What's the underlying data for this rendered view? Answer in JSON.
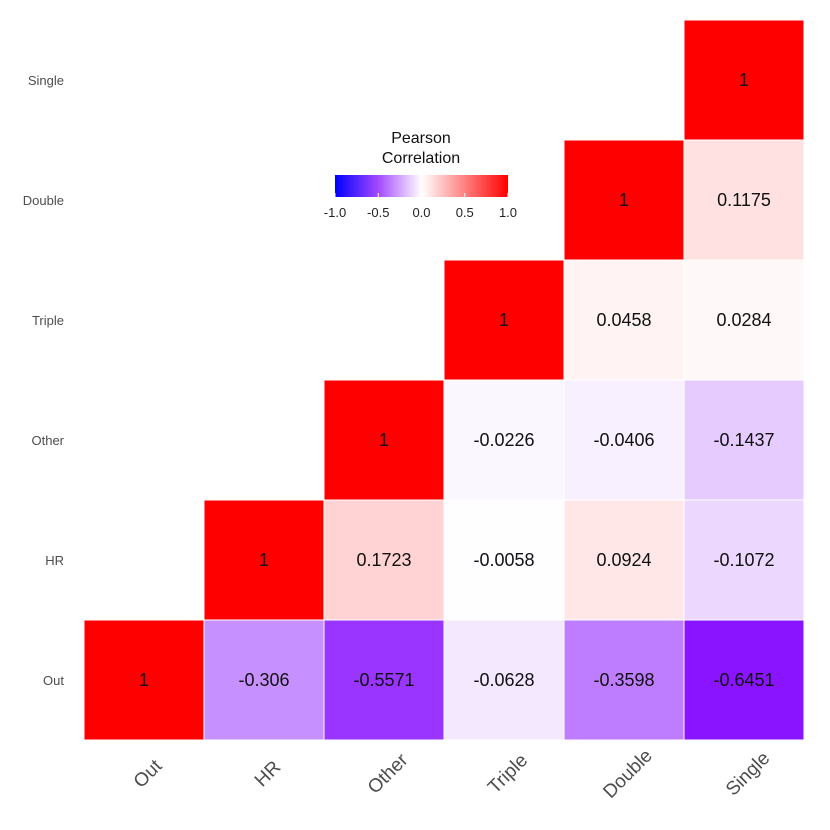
{
  "chart_data": {
    "type": "heatmap",
    "variables": [
      "Out",
      "HR",
      "Other",
      "Triple",
      "Double",
      "Single"
    ],
    "cells": [
      {
        "row": "Out",
        "col": "Out",
        "value": 1,
        "label": "1"
      },
      {
        "row": "Out",
        "col": "HR",
        "value": -0.306,
        "label": "-0.306"
      },
      {
        "row": "Out",
        "col": "Other",
        "value": -0.5571,
        "label": "-0.5571"
      },
      {
        "row": "Out",
        "col": "Triple",
        "value": -0.0628,
        "label": "-0.0628"
      },
      {
        "row": "Out",
        "col": "Double",
        "value": -0.3598,
        "label": "-0.3598"
      },
      {
        "row": "Out",
        "col": "Single",
        "value": -0.6451,
        "label": "-0.6451"
      },
      {
        "row": "HR",
        "col": "HR",
        "value": 1,
        "label": "1"
      },
      {
        "row": "HR",
        "col": "Other",
        "value": 0.1723,
        "label": "0.1723"
      },
      {
        "row": "HR",
        "col": "Triple",
        "value": -0.0058,
        "label": "-0.0058"
      },
      {
        "row": "HR",
        "col": "Double",
        "value": 0.0924,
        "label": "0.0924"
      },
      {
        "row": "HR",
        "col": "Single",
        "value": -0.1072,
        "label": "-0.1072"
      },
      {
        "row": "Other",
        "col": "Other",
        "value": 1,
        "label": "1"
      },
      {
        "row": "Other",
        "col": "Triple",
        "value": -0.0226,
        "label": "-0.0226"
      },
      {
        "row": "Other",
        "col": "Double",
        "value": -0.0406,
        "label": "-0.0406"
      },
      {
        "row": "Other",
        "col": "Single",
        "value": -0.1437,
        "label": "-0.1437"
      },
      {
        "row": "Triple",
        "col": "Triple",
        "value": 1,
        "label": "1"
      },
      {
        "row": "Triple",
        "col": "Double",
        "value": 0.0458,
        "label": "0.0458"
      },
      {
        "row": "Triple",
        "col": "Single",
        "value": 0.0284,
        "label": "0.0284"
      },
      {
        "row": "Double",
        "col": "Double",
        "value": 1,
        "label": "1"
      },
      {
        "row": "Double",
        "col": "Single",
        "value": 0.1175,
        "label": "0.1175"
      },
      {
        "row": "Single",
        "col": "Single",
        "value": 1,
        "label": "1"
      }
    ],
    "colorscale": {
      "low": "#0000ff",
      "mid": "#ffffff",
      "high": "#ff0000",
      "high_purple_blend": "#8000ff",
      "range": [
        -1,
        1
      ]
    },
    "legend": {
      "title_line1": "Pearson",
      "title_line2": "Correlation",
      "ticks": [
        {
          "value": -1.0,
          "label": "-1.0"
        },
        {
          "value": -0.5,
          "label": "-0.5"
        },
        {
          "value": 0.0,
          "label": "0.0"
        },
        {
          "value": 0.5,
          "label": "0.5"
        },
        {
          "value": 1.0,
          "label": "1.0"
        }
      ],
      "placement": "top-center"
    },
    "title": "",
    "xlabel": "",
    "ylabel": ""
  }
}
